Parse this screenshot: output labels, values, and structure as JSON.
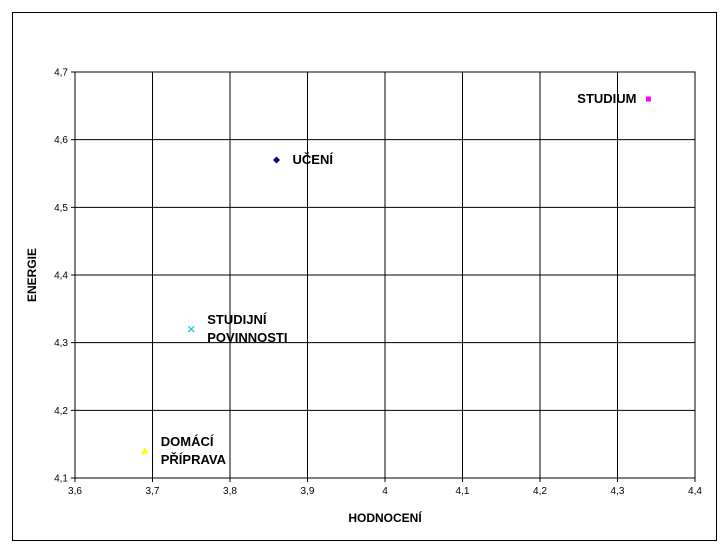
{
  "chart_data": {
    "type": "scatter",
    "title": "",
    "xlabel": "HODNOCENÍ",
    "ylabel": "ENERGIE",
    "xlim": [
      3.6,
      4.4
    ],
    "ylim": [
      4.1,
      4.7
    ],
    "x_ticks": [
      "3,6",
      "3,7",
      "3,8",
      "3,9",
      "4",
      "4,1",
      "4,2",
      "4,3",
      "4,4"
    ],
    "y_ticks": [
      "4,1",
      "4,2",
      "4,3",
      "4,4",
      "4,5",
      "4,6",
      "4,7"
    ],
    "grid": true,
    "legend": "none",
    "points": [
      {
        "label": "STUDIUM",
        "label_lines": [
          "STUDIUM"
        ],
        "x": 4.34,
        "y": 4.66,
        "color": "#ff00ff",
        "marker": "square",
        "label_side": "left"
      },
      {
        "label": "UČENÍ",
        "label_lines": [
          "UČENÍ"
        ],
        "x": 3.86,
        "y": 4.57,
        "color": "#000080",
        "marker": "diamond",
        "label_side": "right"
      },
      {
        "label": "STUDIJNÍ POVINNOSTI",
        "label_lines": [
          "STUDIJNÍ",
          "POVINNOSTI"
        ],
        "x": 3.75,
        "y": 4.32,
        "color": "#00cccc",
        "marker": "x",
        "label_side": "right"
      },
      {
        "label": "DOMÁCÍ PŘÍPRAVA",
        "label_lines": [
          "DOMÁCÍ",
          "PŘÍPRAVA"
        ],
        "x": 3.69,
        "y": 4.14,
        "color": "#ffff00",
        "marker": "triangle",
        "label_side": "right"
      }
    ]
  }
}
